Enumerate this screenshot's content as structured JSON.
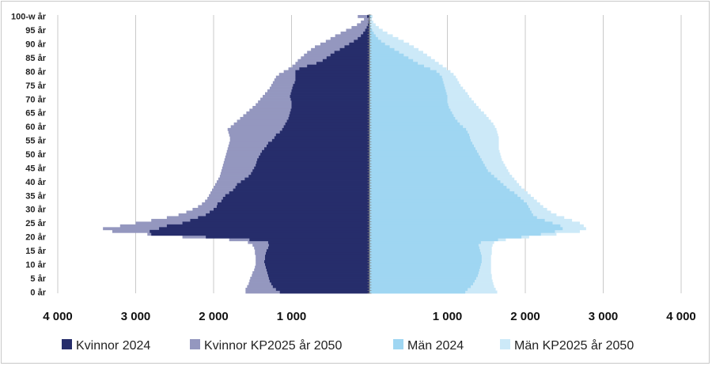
{
  "chart_data": {
    "type": "bar",
    "orientation": "horizontal-pyramid",
    "title": "",
    "xlabel": "",
    "ylabel": "",
    "xlim": [
      -4000,
      4000
    ],
    "x_tick_values": [
      -4000,
      -3000,
      -2000,
      -1000,
      1000,
      2000,
      3000,
      4000
    ],
    "x_tick_labels": [
      "4 000",
      "3 000",
      "2 000",
      "1 000",
      "1 000",
      "2 000",
      "3 000",
      "4 000"
    ],
    "ages": [
      0,
      1,
      2,
      3,
      4,
      5,
      6,
      7,
      8,
      9,
      10,
      11,
      12,
      13,
      14,
      15,
      16,
      17,
      18,
      19,
      20,
      21,
      22,
      23,
      24,
      25,
      26,
      27,
      28,
      29,
      30,
      31,
      32,
      33,
      34,
      35,
      36,
      37,
      38,
      39,
      40,
      41,
      42,
      43,
      44,
      45,
      46,
      47,
      48,
      49,
      50,
      51,
      52,
      53,
      54,
      55,
      56,
      57,
      58,
      59,
      60,
      61,
      62,
      63,
      64,
      65,
      66,
      67,
      68,
      69,
      70,
      71,
      72,
      73,
      74,
      75,
      76,
      77,
      78,
      79,
      80,
      81,
      82,
      83,
      84,
      85,
      86,
      87,
      88,
      89,
      90,
      91,
      92,
      93,
      94,
      95,
      96,
      97,
      98,
      99,
      100
    ],
    "y_tick_ages": [
      0,
      5,
      10,
      15,
      20,
      25,
      30,
      35,
      40,
      45,
      50,
      55,
      60,
      65,
      70,
      75,
      80,
      85,
      90,
      95,
      100
    ],
    "y_tick_labels": [
      "0 år",
      "5 år",
      "10 år",
      "15 år",
      "20 år",
      "25 år",
      "30 år",
      "35 år",
      "40 år",
      "45 år",
      "50 år",
      "55 år",
      "60 år",
      "65 år",
      "70 år",
      "75 år",
      "80 år",
      "85 år",
      "90 år",
      "95 år",
      "100-w år"
    ],
    "grid": true,
    "legend_position": "bottom",
    "series": [
      {
        "name": "Kvinnor KP2025 år 2050",
        "side": "left",
        "color": "#9497bf",
        "values": [
          1590,
          1590,
          1570,
          1550,
          1540,
          1530,
          1510,
          1500,
          1480,
          1470,
          1460,
          1460,
          1460,
          1460,
          1470,
          1470,
          1480,
          1500,
          1560,
          1800,
          2400,
          2850,
          3300,
          3420,
          3200,
          3000,
          2800,
          2600,
          2450,
          2350,
          2270,
          2200,
          2150,
          2110,
          2080,
          2060,
          2040,
          2020,
          2000,
          1980,
          1960,
          1940,
          1920,
          1910,
          1900,
          1890,
          1880,
          1870,
          1860,
          1850,
          1840,
          1830,
          1820,
          1810,
          1800,
          1790,
          1790,
          1800,
          1810,
          1820,
          1780,
          1740,
          1700,
          1660,
          1620,
          1580,
          1540,
          1500,
          1460,
          1430,
          1400,
          1370,
          1340,
          1310,
          1280,
          1260,
          1240,
          1220,
          1200,
          1160,
          1100,
          1040,
          990,
          950,
          920,
          880,
          840,
          800,
          750,
          700,
          630,
          560,
          500,
          440,
          370,
          300,
          230,
          160,
          110,
          70,
          150
        ]
      },
      {
        "name": "Kvinnor 2024",
        "side": "left",
        "color": "#262d6b",
        "values": [
          1150,
          1200,
          1240,
          1260,
          1280,
          1290,
          1300,
          1310,
          1320,
          1330,
          1340,
          1350,
          1340,
          1340,
          1330,
          1320,
          1300,
          1290,
          1300,
          1540,
          2100,
          2800,
          2820,
          2700,
          2600,
          2400,
          2300,
          2200,
          2100,
          2050,
          2000,
          1960,
          1950,
          1900,
          1880,
          1850,
          1800,
          1750,
          1720,
          1700,
          1650,
          1600,
          1550,
          1520,
          1500,
          1480,
          1460,
          1450,
          1440,
          1420,
          1400,
          1380,
          1350,
          1320,
          1300,
          1250,
          1220,
          1200,
          1150,
          1120,
          1100,
          1080,
          1060,
          1040,
          1030,
          1020,
          1010,
          1000,
          1000,
          1000,
          1010,
          1020,
          1010,
          1000,
          990,
          980,
          960,
          950,
          950,
          950,
          950,
          900,
          800,
          680,
          600,
          550,
          500,
          450,
          380,
          320,
          260,
          200,
          150,
          110,
          80,
          55,
          35,
          20,
          12,
          8,
          30
        ]
      },
      {
        "name": "Män KP2025 år 2050",
        "side": "right",
        "color": "#cce9f8",
        "values": [
          1640,
          1620,
          1600,
          1590,
          1580,
          1570,
          1570,
          1560,
          1560,
          1560,
          1560,
          1560,
          1560,
          1560,
          1570,
          1570,
          1570,
          1580,
          1600,
          1750,
          2050,
          2400,
          2700,
          2780,
          2750,
          2700,
          2600,
          2500,
          2400,
          2330,
          2280,
          2230,
          2190,
          2150,
          2110,
          2070,
          2030,
          1990,
          1950,
          1920,
          1890,
          1860,
          1830,
          1800,
          1780,
          1760,
          1740,
          1720,
          1700,
          1690,
          1680,
          1670,
          1660,
          1660,
          1660,
          1660,
          1660,
          1650,
          1640,
          1630,
          1610,
          1590,
          1560,
          1530,
          1500,
          1470,
          1430,
          1400,
          1370,
          1340,
          1310,
          1280,
          1260,
          1230,
          1200,
          1170,
          1150,
          1130,
          1110,
          1080,
          1040,
          990,
          940,
          890,
          840,
          790,
          740,
          690,
          630,
          570,
          510,
          440,
          370,
          300,
          230,
          170,
          120,
          80,
          50,
          30,
          40
        ]
      },
      {
        "name": "Män 2024",
        "side": "right",
        "color": "#9fd6f2",
        "values": [
          1230,
          1260,
          1300,
          1330,
          1350,
          1370,
          1390,
          1400,
          1410,
          1420,
          1430,
          1440,
          1440,
          1440,
          1430,
          1420,
          1410,
          1400,
          1430,
          1650,
          1950,
          2200,
          2380,
          2480,
          2450,
          2350,
          2250,
          2150,
          2100,
          2080,
          2060,
          2040,
          2020,
          1980,
          1940,
          1900,
          1860,
          1800,
          1760,
          1720,
          1680,
          1640,
          1600,
          1560,
          1520,
          1500,
          1480,
          1460,
          1440,
          1420,
          1400,
          1380,
          1360,
          1340,
          1320,
          1300,
          1290,
          1280,
          1260,
          1240,
          1200,
          1160,
          1130,
          1100,
          1080,
          1060,
          1040,
          1020,
          1010,
          1000,
          1000,
          1000,
          990,
          980,
          970,
          960,
          950,
          940,
          930,
          900,
          860,
          780,
          700,
          620,
          560,
          500,
          440,
          380,
          320,
          260,
          200,
          150,
          110,
          80,
          55,
          35,
          20,
          12,
          8,
          5,
          20
        ]
      }
    ]
  }
}
